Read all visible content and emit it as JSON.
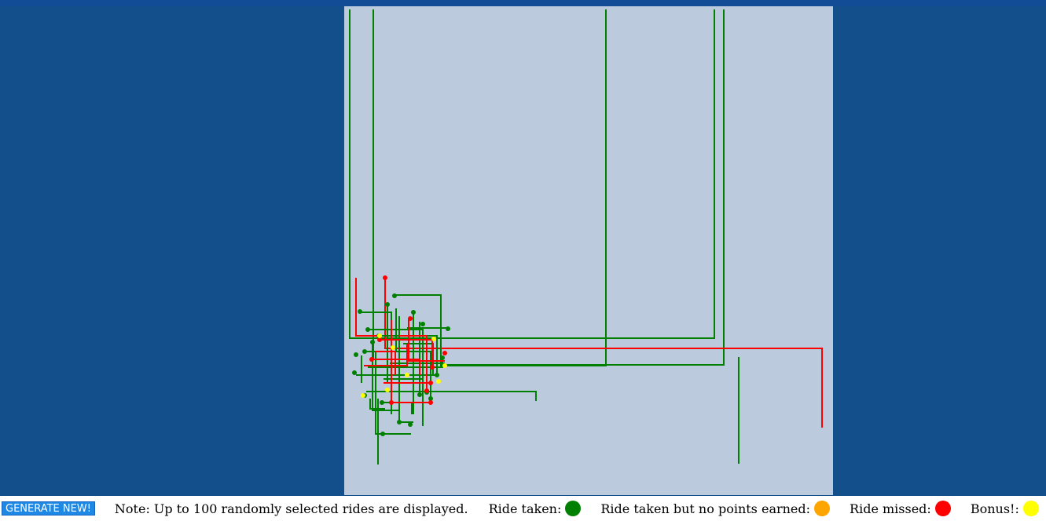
{
  "footer": {
    "button_label": "GENERATE NEW!",
    "note": "Note: Up to 100 randomly selected rides are displayed.",
    "legend": [
      {
        "label": "Ride taken:",
        "color": "#008000"
      },
      {
        "label": "Ride taken but no points earned:",
        "color": "#ffa500"
      },
      {
        "label": "Ride missed:",
        "color": "#ff0000"
      },
      {
        "label": "Bonus!:",
        "color": "#ffff00"
      }
    ]
  },
  "colors": {
    "background": "#13508b",
    "map": "#bbcbdd",
    "taken": "#008000",
    "missed": "#ff0000",
    "bonus": "#ffff00"
  }
}
